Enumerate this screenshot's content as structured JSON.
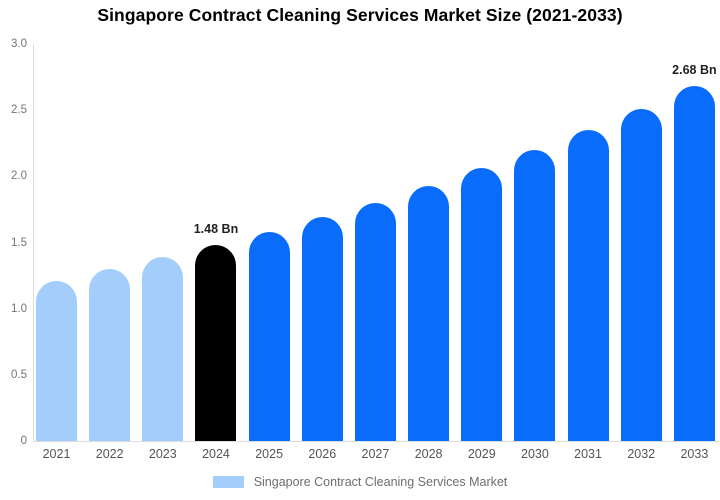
{
  "title": "Singapore Contract Cleaning Services Market Size (2021-2033)",
  "colors": {
    "background": "#ffffff",
    "axis_line": "#dcdcdc",
    "title_text": "#000000",
    "y_tick_text": "#757575",
    "x_label_text": "#555555",
    "data_label_text": "#222222",
    "legend_text": "#6e6e6e",
    "bar_roles": {
      "past": "#a3cefb",
      "highlight": "#000000",
      "future": "#0a6cfa"
    }
  },
  "chart_data": {
    "type": "bar",
    "title": "Singapore Contract Cleaning Services Market Size (2021-2033)",
    "categories": [
      "2021",
      "2022",
      "2023",
      "2024",
      "2025",
      "2026",
      "2027",
      "2028",
      "2029",
      "2030",
      "2031",
      "2032",
      "2033"
    ],
    "values": [
      1.21,
      1.3,
      1.39,
      1.48,
      1.58,
      1.69,
      1.8,
      1.93,
      2.06,
      2.2,
      2.35,
      2.51,
      2.68
    ],
    "unit": "Bn",
    "xlabel": "",
    "ylabel": "",
    "ylim": [
      0,
      3.0
    ],
    "yticks": [
      "3.0",
      "2.5",
      "2.0",
      "1.5",
      "1.0",
      "0.5",
      "0"
    ],
    "grid": false,
    "bar_roles": [
      "past",
      "past",
      "past",
      "highlight",
      "future",
      "future",
      "future",
      "future",
      "future",
      "future",
      "future",
      "future",
      "future"
    ],
    "annotations": {
      "2024": "1.48 Bn",
      "2033": "2.68 Bn"
    },
    "legend_label": "Singapore Contract Cleaning Services Market",
    "legend_position": "bottom",
    "legend_swatch_role": "past"
  }
}
